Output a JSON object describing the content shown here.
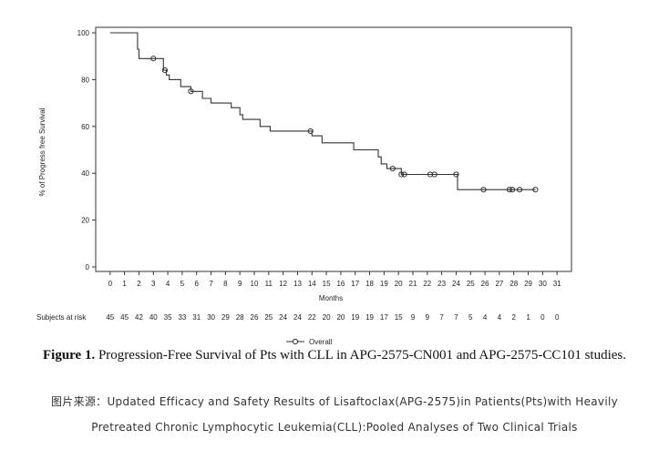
{
  "chart_data": {
    "type": "line",
    "title": "",
    "xlabel": "Months",
    "ylabel": "% of Progress free Survival",
    "xlim": [
      -1,
      32
    ],
    "ylim": [
      0,
      100
    ],
    "x_ticks": [
      0,
      1,
      2,
      3,
      4,
      5,
      6,
      7,
      8,
      9,
      10,
      11,
      12,
      13,
      14,
      15,
      16,
      17,
      18,
      19,
      20,
      21,
      22,
      23,
      24,
      25,
      26,
      27,
      28,
      29,
      30,
      31
    ],
    "y_ticks": [
      0,
      20,
      40,
      60,
      80,
      100
    ],
    "grid": false,
    "legend_position": "bottom-center",
    "series": [
      {
        "name": "Overall",
        "color": "#333333",
        "steps": [
          [
            0,
            100
          ],
          [
            1.9,
            100
          ],
          [
            1.9,
            93
          ],
          [
            2.0,
            93
          ],
          [
            2.0,
            89
          ],
          [
            3.7,
            89
          ],
          [
            3.7,
            84
          ],
          [
            3.9,
            84
          ],
          [
            3.9,
            82
          ],
          [
            4.1,
            82
          ],
          [
            4.1,
            80
          ],
          [
            4.9,
            80
          ],
          [
            4.9,
            77
          ],
          [
            5.6,
            77
          ],
          [
            5.6,
            75
          ],
          [
            6.4,
            75
          ],
          [
            6.4,
            72
          ],
          [
            7.0,
            72
          ],
          [
            7.0,
            70
          ],
          [
            8.4,
            70
          ],
          [
            8.4,
            68
          ],
          [
            9.0,
            68
          ],
          [
            9.0,
            65
          ],
          [
            9.2,
            65
          ],
          [
            9.2,
            63
          ],
          [
            10.4,
            63
          ],
          [
            10.4,
            60
          ],
          [
            11.1,
            60
          ],
          [
            11.1,
            58
          ],
          [
            14.0,
            58
          ],
          [
            14.0,
            56
          ],
          [
            14.7,
            56
          ],
          [
            14.7,
            53
          ],
          [
            16.9,
            53
          ],
          [
            16.9,
            50
          ],
          [
            18.6,
            50
          ],
          [
            18.6,
            47
          ],
          [
            18.8,
            47
          ],
          [
            18.8,
            44
          ],
          [
            19.2,
            44
          ],
          [
            19.2,
            42
          ],
          [
            20.2,
            42
          ],
          [
            20.2,
            39.5
          ],
          [
            24.1,
            39.5
          ],
          [
            24.1,
            33
          ],
          [
            29.5,
            33
          ]
        ],
        "censored": [
          [
            3.0,
            89
          ],
          [
            3.8,
            84
          ],
          [
            5.6,
            75
          ],
          [
            13.9,
            58
          ],
          [
            19.6,
            42
          ],
          [
            20.2,
            39.5
          ],
          [
            20.4,
            39.5
          ],
          [
            22.2,
            39.5
          ],
          [
            22.5,
            39.5
          ],
          [
            24.0,
            39.5
          ],
          [
            25.9,
            33
          ],
          [
            27.7,
            33
          ],
          [
            27.9,
            33
          ],
          [
            28.4,
            33
          ],
          [
            29.5,
            33
          ]
        ]
      }
    ],
    "risk_table": {
      "label": "Subjects at risk",
      "values": [
        "45",
        "45",
        "42",
        "40",
        "35",
        "33",
        "31",
        "30",
        "29",
        "28",
        "26",
        "25",
        "24",
        "24",
        "22",
        "20",
        "20",
        "19",
        "19",
        "17",
        "15",
        "9",
        "9",
        "7",
        "7",
        "5",
        "4",
        "4",
        "2",
        "1",
        "0",
        "0"
      ]
    }
  },
  "caption": {
    "prefix": "Figure 1.",
    "text": " Progression-Free Survival of Pts with CLL in APG-2575-CN001 and APG-2575-CC101 studies."
  },
  "source": {
    "line1": "图片来源：Updated Efficacy and Safety Results of Lisaftoclax(APG-2575)in Patients(Pts)with Heavily",
    "line2": "Pretreated Chronic Lymphocytic Leukemia(CLL):Pooled Analyses of Two Clinical Trials"
  }
}
